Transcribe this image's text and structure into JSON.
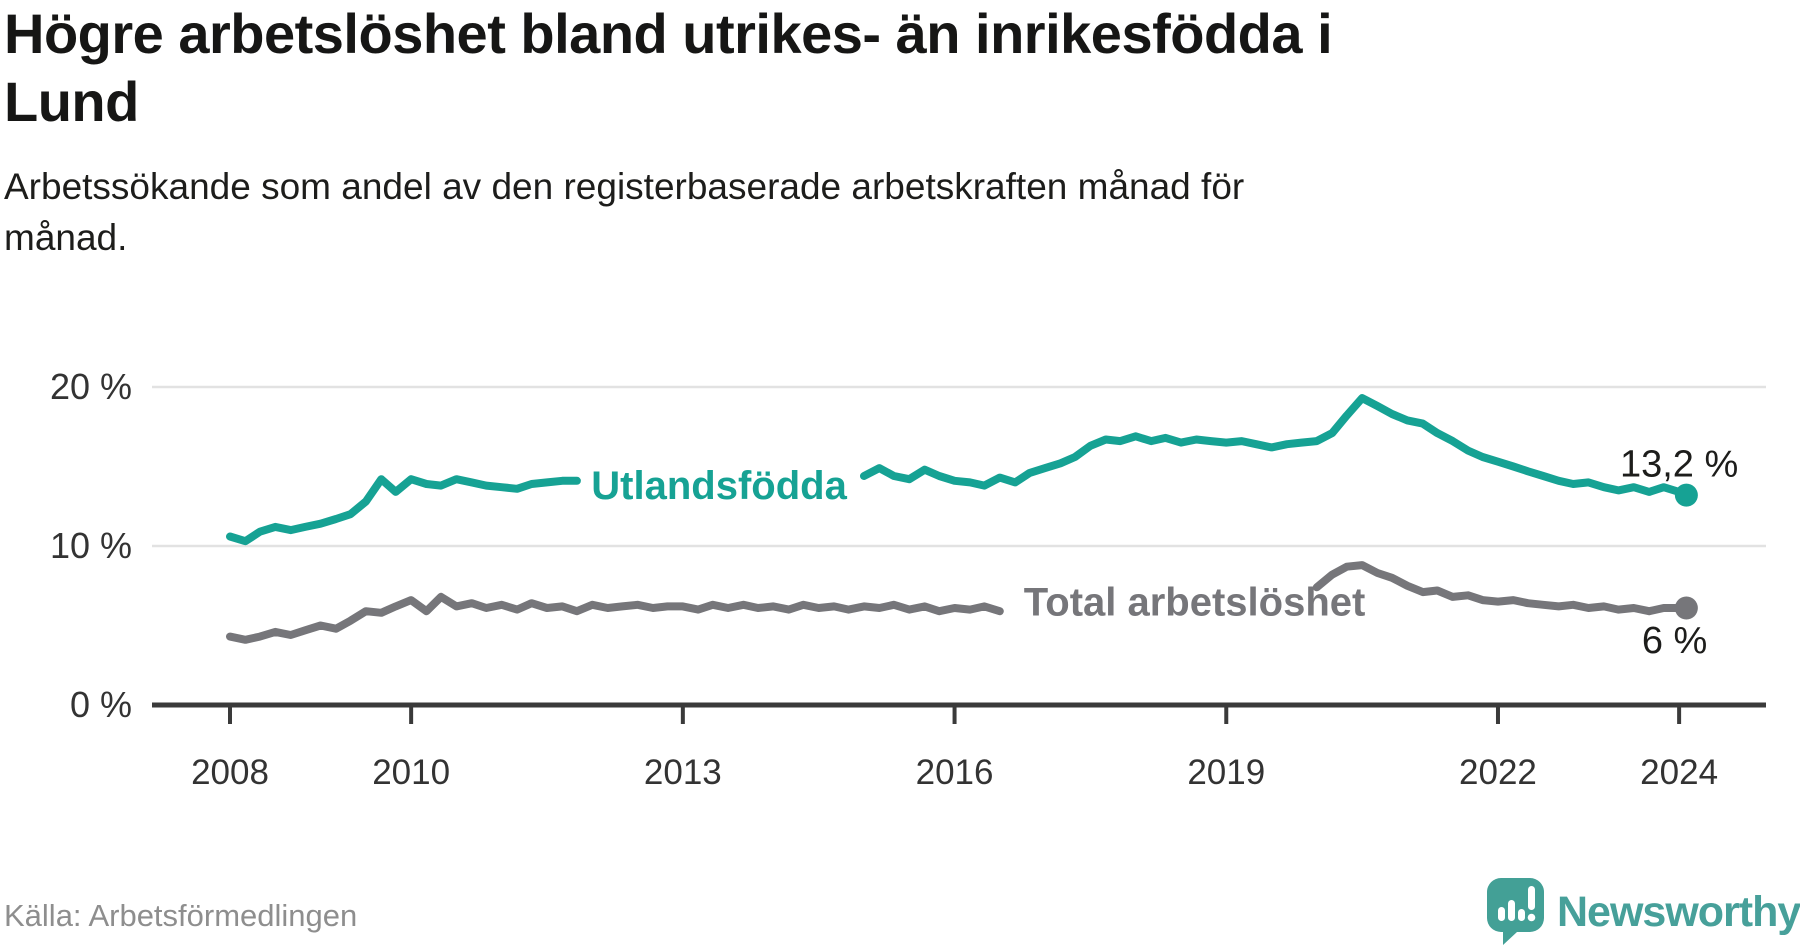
{
  "header": {
    "title_lines": [
      "Högre arbetslöshet bland utrikes- än inrikesfödda i",
      "Lund"
    ],
    "subtitle_lines": [
      "Arbetssökande som andel av den registerbaserade arbetskraften månad för",
      "månad."
    ]
  },
  "footer": {
    "source": "Källa: Arbetsförmedlingen",
    "brand": "Newsworthy"
  },
  "colors": {
    "teal_series": "#16a294",
    "gray_series": "#76767a",
    "logo_teal": "#43a096",
    "grid": "#e2e2e2",
    "axis": "#3a3a3a",
    "tick_label": "#333333",
    "value_label": "#1d1d1b",
    "source_text": "#8e8e8e"
  },
  "chart_data": {
    "type": "line",
    "title": "Högre arbetslöshet bland utrikes- än inrikesfödda i Lund",
    "subtitle": "Arbetssökande som andel av den registerbaserade arbetskraften månad för månad.",
    "x_axis": {
      "ticks": [
        2008,
        2010,
        2013,
        2016,
        2019,
        2022,
        2024
      ],
      "range": [
        2007.1,
        2024.9
      ],
      "grid": false
    },
    "y_axis": {
      "ticks": [
        {
          "value": 0,
          "label": "0 %"
        },
        {
          "value": 10,
          "label": "10 %"
        },
        {
          "value": 20,
          "label": "20 %"
        }
      ],
      "range": [
        0,
        21.5
      ],
      "grid": true
    },
    "legend_position": "inline-labels",
    "series": [
      {
        "name": "Utlandsfödda",
        "color": "#16a294",
        "label_at": [
          2013.4,
          13.85
        ],
        "label_gaps": [
          [
            2011.85,
            2014.95
          ]
        ],
        "end_label": "13,2 %",
        "end_label_at": [
          2024.0,
          15.2
        ],
        "end_value": 13.2,
        "points": [
          [
            2008,
            10.6
          ],
          [
            2008.17,
            10.3
          ],
          [
            2008.33,
            10.9
          ],
          [
            2008.5,
            11.2
          ],
          [
            2008.67,
            11.0
          ],
          [
            2008.83,
            11.2
          ],
          [
            2009,
            11.4
          ],
          [
            2009.17,
            11.7
          ],
          [
            2009.33,
            12.0
          ],
          [
            2009.5,
            12.8
          ],
          [
            2009.67,
            14.2
          ],
          [
            2009.83,
            13.4
          ],
          [
            2010,
            14.2
          ],
          [
            2010.17,
            13.9
          ],
          [
            2010.33,
            13.8
          ],
          [
            2010.5,
            14.2
          ],
          [
            2010.67,
            14.0
          ],
          [
            2010.83,
            13.8
          ],
          [
            2011,
            13.7
          ],
          [
            2011.17,
            13.6
          ],
          [
            2011.33,
            13.9
          ],
          [
            2011.5,
            14.0
          ],
          [
            2011.67,
            14.1
          ],
          [
            2011.83,
            14.1
          ],
          [
            2012,
            14.0
          ],
          [
            2012.17,
            14.1
          ],
          [
            2012.33,
            14.2
          ],
          [
            2012.5,
            14.3
          ],
          [
            2012.67,
            14.2
          ],
          [
            2012.83,
            14.3
          ],
          [
            2013,
            14.4
          ],
          [
            2013.17,
            14.3
          ],
          [
            2013.33,
            14.4
          ],
          [
            2013.5,
            14.5
          ],
          [
            2013.67,
            14.4
          ],
          [
            2013.83,
            14.4
          ],
          [
            2014,
            14.5
          ],
          [
            2014.17,
            14.4
          ],
          [
            2014.33,
            14.3
          ],
          [
            2014.5,
            14.4
          ],
          [
            2014.67,
            14.3
          ],
          [
            2014.83,
            14.3
          ],
          [
            2015,
            14.4
          ],
          [
            2015.17,
            14.9
          ],
          [
            2015.33,
            14.4
          ],
          [
            2015.5,
            14.2
          ],
          [
            2015.67,
            14.8
          ],
          [
            2015.83,
            14.4
          ],
          [
            2016,
            14.1
          ],
          [
            2016.17,
            14.0
          ],
          [
            2016.33,
            13.8
          ],
          [
            2016.5,
            14.3
          ],
          [
            2016.67,
            14.0
          ],
          [
            2016.83,
            14.6
          ],
          [
            2017,
            14.9
          ],
          [
            2017.17,
            15.2
          ],
          [
            2017.33,
            15.6
          ],
          [
            2017.5,
            16.3
          ],
          [
            2017.67,
            16.7
          ],
          [
            2017.83,
            16.6
          ],
          [
            2018,
            16.9
          ],
          [
            2018.17,
            16.6
          ],
          [
            2018.33,
            16.8
          ],
          [
            2018.5,
            16.5
          ],
          [
            2018.67,
            16.7
          ],
          [
            2018.83,
            16.6
          ],
          [
            2019,
            16.5
          ],
          [
            2019.17,
            16.6
          ],
          [
            2019.33,
            16.4
          ],
          [
            2019.5,
            16.2
          ],
          [
            2019.67,
            16.4
          ],
          [
            2019.83,
            16.5
          ],
          [
            2020,
            16.6
          ],
          [
            2020.17,
            17.1
          ],
          [
            2020.33,
            18.2
          ],
          [
            2020.5,
            19.3
          ],
          [
            2020.67,
            18.8
          ],
          [
            2020.83,
            18.3
          ],
          [
            2021,
            17.9
          ],
          [
            2021.17,
            17.7
          ],
          [
            2021.33,
            17.1
          ],
          [
            2021.5,
            16.6
          ],
          [
            2021.67,
            16.0
          ],
          [
            2021.83,
            15.6
          ],
          [
            2022,
            15.3
          ],
          [
            2022.17,
            15.0
          ],
          [
            2022.33,
            14.7
          ],
          [
            2022.5,
            14.4
          ],
          [
            2022.67,
            14.1
          ],
          [
            2022.83,
            13.9
          ],
          [
            2023,
            14.0
          ],
          [
            2023.17,
            13.7
          ],
          [
            2023.33,
            13.5
          ],
          [
            2023.5,
            13.7
          ],
          [
            2023.67,
            13.4
          ],
          [
            2023.83,
            13.7
          ],
          [
            2024,
            13.4
          ],
          [
            2024.08,
            13.2
          ]
        ]
      },
      {
        "name": "Total arbetslöshet",
        "color": "#76767a",
        "label_at": [
          2018.65,
          6.5
        ],
        "label_gaps": [
          [
            2016.55,
            2019.95
          ]
        ],
        "end_label": "6 %",
        "end_label_at": [
          2023.95,
          4.1
        ],
        "end_value": 6.0,
        "points": [
          [
            2008,
            4.3
          ],
          [
            2008.17,
            4.1
          ],
          [
            2008.33,
            4.3
          ],
          [
            2008.5,
            4.6
          ],
          [
            2008.67,
            4.4
          ],
          [
            2008.83,
            4.7
          ],
          [
            2009,
            5.0
          ],
          [
            2009.17,
            4.8
          ],
          [
            2009.33,
            5.3
          ],
          [
            2009.5,
            5.9
          ],
          [
            2009.67,
            5.8
          ],
          [
            2009.83,
            6.2
          ],
          [
            2010,
            6.6
          ],
          [
            2010.17,
            5.9
          ],
          [
            2010.33,
            6.8
          ],
          [
            2010.5,
            6.2
          ],
          [
            2010.67,
            6.4
          ],
          [
            2010.83,
            6.1
          ],
          [
            2011,
            6.3
          ],
          [
            2011.17,
            6.0
          ],
          [
            2011.33,
            6.4
          ],
          [
            2011.5,
            6.1
          ],
          [
            2011.67,
            6.2
          ],
          [
            2011.83,
            5.9
          ],
          [
            2012,
            6.3
          ],
          [
            2012.17,
            6.1
          ],
          [
            2012.33,
            6.2
          ],
          [
            2012.5,
            6.3
          ],
          [
            2012.67,
            6.1
          ],
          [
            2012.83,
            6.2
          ],
          [
            2013,
            6.2
          ],
          [
            2013.17,
            6.0
          ],
          [
            2013.33,
            6.3
          ],
          [
            2013.5,
            6.1
          ],
          [
            2013.67,
            6.3
          ],
          [
            2013.83,
            6.1
          ],
          [
            2014,
            6.2
          ],
          [
            2014.17,
            6.0
          ],
          [
            2014.33,
            6.3
          ],
          [
            2014.5,
            6.1
          ],
          [
            2014.67,
            6.2
          ],
          [
            2014.83,
            6.0
          ],
          [
            2015,
            6.2
          ],
          [
            2015.17,
            6.1
          ],
          [
            2015.33,
            6.3
          ],
          [
            2015.5,
            6.0
          ],
          [
            2015.67,
            6.2
          ],
          [
            2015.83,
            5.9
          ],
          [
            2016,
            6.1
          ],
          [
            2016.17,
            6.0
          ],
          [
            2016.33,
            6.2
          ],
          [
            2016.5,
            5.9
          ],
          [
            2016.67,
            6.0
          ],
          [
            2016.83,
            6.1
          ],
          [
            2017,
            6.0
          ],
          [
            2017.17,
            6.1
          ],
          [
            2017.33,
            6.2
          ],
          [
            2017.5,
            6.1
          ],
          [
            2017.67,
            6.2
          ],
          [
            2017.83,
            6.3
          ],
          [
            2018,
            6.3
          ],
          [
            2018.17,
            6.4
          ],
          [
            2018.33,
            6.3
          ],
          [
            2018.5,
            6.4
          ],
          [
            2018.67,
            6.5
          ],
          [
            2018.83,
            6.4
          ],
          [
            2019,
            6.5
          ],
          [
            2019.17,
            6.4
          ],
          [
            2019.33,
            6.5
          ],
          [
            2019.5,
            6.6
          ],
          [
            2019.67,
            6.7
          ],
          [
            2019.83,
            7.0
          ],
          [
            2020,
            7.4
          ],
          [
            2020.17,
            8.2
          ],
          [
            2020.33,
            8.7
          ],
          [
            2020.5,
            8.8
          ],
          [
            2020.67,
            8.3
          ],
          [
            2020.83,
            8.0
          ],
          [
            2021,
            7.5
          ],
          [
            2021.17,
            7.1
          ],
          [
            2021.33,
            7.2
          ],
          [
            2021.5,
            6.8
          ],
          [
            2021.67,
            6.9
          ],
          [
            2021.83,
            6.6
          ],
          [
            2022,
            6.5
          ],
          [
            2022.17,
            6.6
          ],
          [
            2022.33,
            6.4
          ],
          [
            2022.5,
            6.3
          ],
          [
            2022.67,
            6.2
          ],
          [
            2022.83,
            6.3
          ],
          [
            2023,
            6.1
          ],
          [
            2023.17,
            6.2
          ],
          [
            2023.33,
            6.0
          ],
          [
            2023.5,
            6.1
          ],
          [
            2023.67,
            5.9
          ],
          [
            2023.83,
            6.1
          ],
          [
            2024,
            6.1
          ],
          [
            2024.08,
            6.1
          ]
        ]
      }
    ]
  }
}
